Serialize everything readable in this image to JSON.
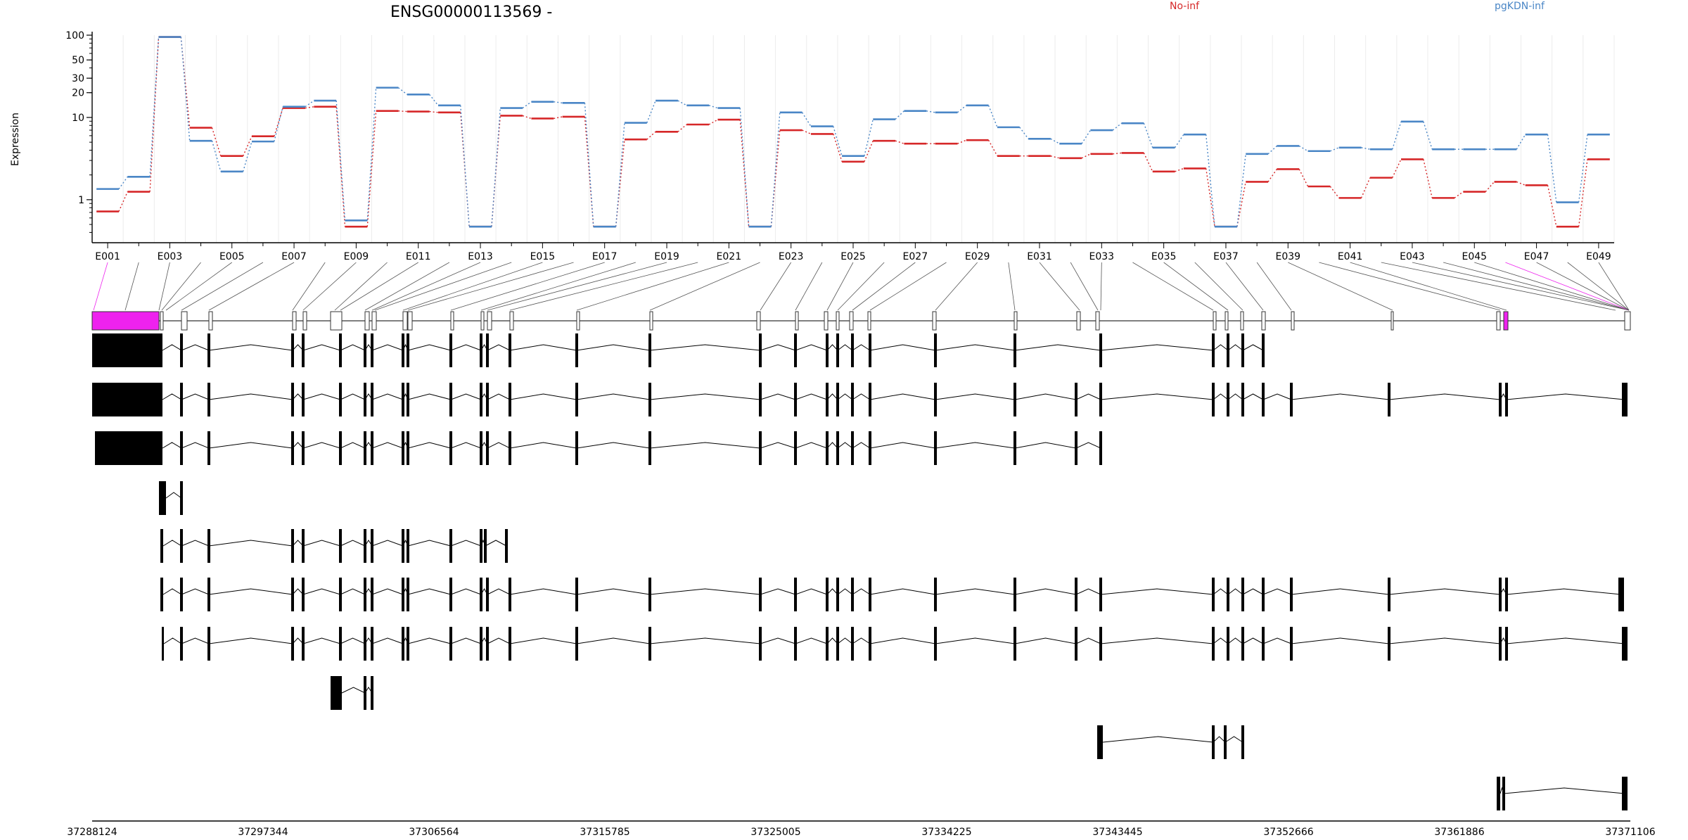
{
  "chart_data": {
    "type": "line",
    "title": "ENSG00000113569 -",
    "xlabel": "",
    "ylabel": "Expression",
    "yscale": "log",
    "ylim": [
      0.3,
      100
    ],
    "y_ticks": [
      1,
      10,
      20,
      30,
      50,
      100
    ],
    "y_tick_labels": [
      "1",
      "10",
      "20",
      "30",
      "50",
      "100"
    ],
    "grid": true,
    "legend_placement": "top",
    "categories": [
      "E001",
      "E002",
      "E003",
      "E004",
      "E005",
      "E006",
      "E007",
      "E008",
      "E009",
      "E010",
      "E011",
      "E012",
      "E013",
      "E014",
      "E015",
      "E016",
      "E017",
      "E018",
      "E019",
      "E020",
      "E021",
      "E022",
      "E023",
      "E024",
      "E025",
      "E026",
      "E027",
      "E028",
      "E029",
      "E030",
      "E031",
      "E032",
      "E033",
      "E034",
      "E035",
      "E036",
      "E037",
      "E038",
      "E039",
      "E040",
      "E041",
      "E042",
      "E043",
      "E044",
      "E045",
      "E046",
      "E047",
      "E048",
      "E049"
    ],
    "x_tick_labels": [
      "E001",
      "E003",
      "E005",
      "E007",
      "E009",
      "E011",
      "E013",
      "E015",
      "E017",
      "E019",
      "E021",
      "E023",
      "E025",
      "E027",
      "E029",
      "E031",
      "E033",
      "E035",
      "E037",
      "E039",
      "E041",
      "E043",
      "E045",
      "E047",
      "E049"
    ],
    "series": [
      {
        "name": "No-inf",
        "color": "#d62728",
        "values": [
          0.72,
          1.25,
          95,
          7.5,
          3.4,
          5.9,
          13,
          13.5,
          0.47,
          12,
          11.8,
          11.5,
          0.47,
          10.5,
          9.7,
          10.2,
          0.47,
          5.4,
          6.7,
          8.2,
          9.4,
          0.47,
          7,
          6.3,
          2.9,
          5.2,
          4.8,
          4.8,
          5.3,
          3.4,
          3.4,
          3.2,
          3.6,
          3.7,
          2.2,
          2.4,
          0.47,
          1.65,
          2.35,
          1.45,
          1.05,
          1.85,
          3.1,
          1.05,
          1.25,
          1.65,
          1.5,
          0.47,
          3.1
        ]
      },
      {
        "name": "pgKDN-inf",
        "color": "#4a86c6",
        "values": [
          1.35,
          1.9,
          95,
          5.2,
          2.2,
          5.1,
          13.5,
          16,
          0.56,
          23,
          19,
          14,
          0.47,
          13,
          15.5,
          15,
          0.47,
          8.6,
          16,
          14,
          13,
          0.47,
          11.5,
          7.8,
          3.4,
          9.5,
          12,
          11.5,
          14,
          7.6,
          5.5,
          4.8,
          7,
          8.5,
          4.3,
          6.2,
          0.47,
          3.6,
          4.5,
          3.9,
          4.3,
          4.1,
          8.9,
          4.1,
          4.1,
          4.1,
          6.2,
          0.93,
          6.2
        ]
      }
    ],
    "genomic_axis_labels": [
      "37288124",
      "37297344",
      "37306564",
      "37315785",
      "37325005",
      "37334225",
      "37343445",
      "37352666",
      "37361886",
      "37371106"
    ],
    "highlighted_exons": [
      "E001",
      "E046"
    ],
    "highlight_color": "#ee22ee",
    "transcript_count": 11
  }
}
